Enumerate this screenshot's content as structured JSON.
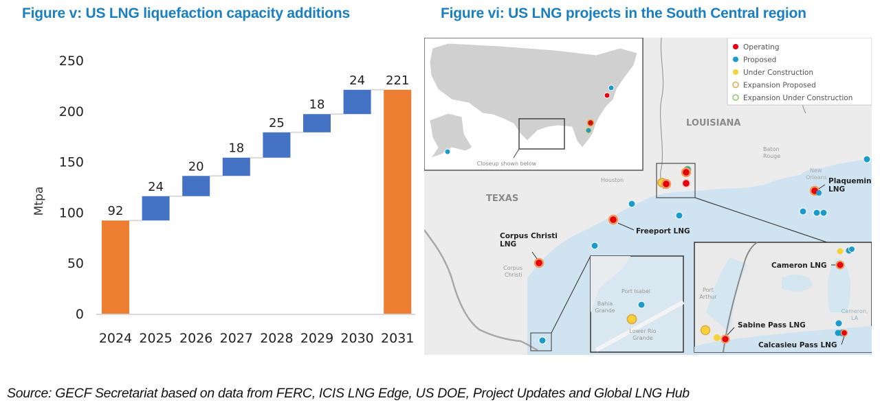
{
  "figures": {
    "left_title": "Figure v: US LNG liquefaction capacity additions",
    "right_title": "Figure vi: US LNG projects in the South Central region"
  },
  "chart_data": {
    "type": "bar",
    "subtype": "waterfall",
    "title": "Figure v: US LNG liquefaction capacity additions",
    "xlabel": "",
    "ylabel": "Mtpa",
    "ylim": [
      0,
      250
    ],
    "yticks": [
      0,
      50,
      100,
      150,
      200,
      250
    ],
    "categories": [
      "2024",
      "2025",
      "2026",
      "2027",
      "2028",
      "2029",
      "2030",
      "2031"
    ],
    "values": [
      92,
      24,
      20,
      18,
      25,
      18,
      24,
      221
    ],
    "bar_kinds": [
      "total",
      "increase",
      "increase",
      "increase",
      "increase",
      "increase",
      "increase",
      "total"
    ],
    "data_labels": [
      "92",
      "24",
      "20",
      "18",
      "25",
      "18",
      "24",
      "221"
    ],
    "colors": {
      "total": "#ed7d31",
      "increase": "#4472c4",
      "connector": "#d9d9d9",
      "axis": "#d9d9d9"
    },
    "grid": false,
    "legend": "none"
  },
  "map": {
    "title": "Figure vi: US LNG projects in the South Central region",
    "legend": [
      {
        "label": "Operating",
        "kind": "operating",
        "color": "#e3000f"
      },
      {
        "label": "Proposed",
        "kind": "proposed",
        "color": "#1a9bc9"
      },
      {
        "label": "Under Construction",
        "kind": "under-construction",
        "color": "#f5d23a"
      },
      {
        "label": "Expansion Proposed",
        "kind": "expansion-proposed",
        "color": "#e0a94a"
      },
      {
        "label": "Expansion Under Construction",
        "kind": "expansion-under-construction",
        "color": "#8dc86b"
      }
    ],
    "inset_caption": "Closeup shown below",
    "region_labels": {
      "louisiana": "LOUISIANA",
      "texas": "TEXAS",
      "houston": "Houston",
      "baton_rouge_1": "Baton",
      "baton_rouge_2": "Rouge",
      "new_orleans_1": "New",
      "new_orleans_2": "Orleans",
      "corpus_christi_1": "Corpus",
      "corpus_christi_2": "Christi",
      "port_isabel": "Port Isabel",
      "bahia_grande_1": "Bahia",
      "bahia_grande_2": "Grande",
      "lower_rio_grande_1": "Lower Rio",
      "lower_rio_grande_2": "Grande",
      "port_arthur_1": "Port",
      "port_arthur_2": "Arthur",
      "cameron_la_1": "Cameron,",
      "cameron_la_2": "LA"
    },
    "project_labels": {
      "corpus_christi_1": "Corpus Christi",
      "corpus_christi_2": "LNG",
      "freeport": "Freeport LNG",
      "plaquemines_1": "Plaquemin",
      "plaquemines_2": "LNG",
      "cameron": "Cameron LNG",
      "sabine_pass": "Sabine Pass LNG",
      "calcasieu_pass": "Calcasieu Pass LNG"
    }
  },
  "source_note": "Source: GECF Secretariat based on data from FERC, ICIS LNG Edge, US DOE, Project Updates and Global LNG Hub"
}
